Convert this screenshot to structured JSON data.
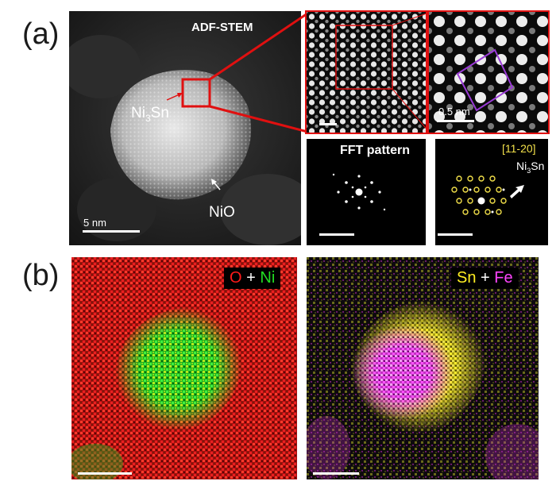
{
  "panel_a": {
    "label": "(a)",
    "main": {
      "title": "ADF-STEM",
      "particle_label_main": "Ni",
      "particle_label_sub": "3",
      "particle_label_end": "Sn",
      "shell_label": "NiO",
      "scale_label": "5 nm"
    },
    "zoom2": {
      "scale_label": "0.5 nm"
    },
    "fft1": {
      "title": "FFT pattern"
    },
    "fft2": {
      "zone_axis": "[11-20]",
      "label_main": "Ni",
      "label_sub": "3",
      "label_end": "Sn"
    }
  },
  "panel_b": {
    "label": "(b)",
    "map1": {
      "el1": "O",
      "plus": "+",
      "el2": "Ni",
      "colors": {
        "el1": "#ff1a1a",
        "plus": "#ffffff",
        "el2": "#22dd22"
      }
    },
    "map2": {
      "el1": "Sn",
      "plus": "+",
      "el2": "Fe",
      "colors": {
        "el1": "#ffee22",
        "plus": "#ffffff",
        "el2": "#ff44ff"
      }
    }
  },
  "colors": {
    "highlight_box": "#e01010",
    "lattice_box": "#9a3ad6",
    "fft_spot": "#f2e04a"
  }
}
